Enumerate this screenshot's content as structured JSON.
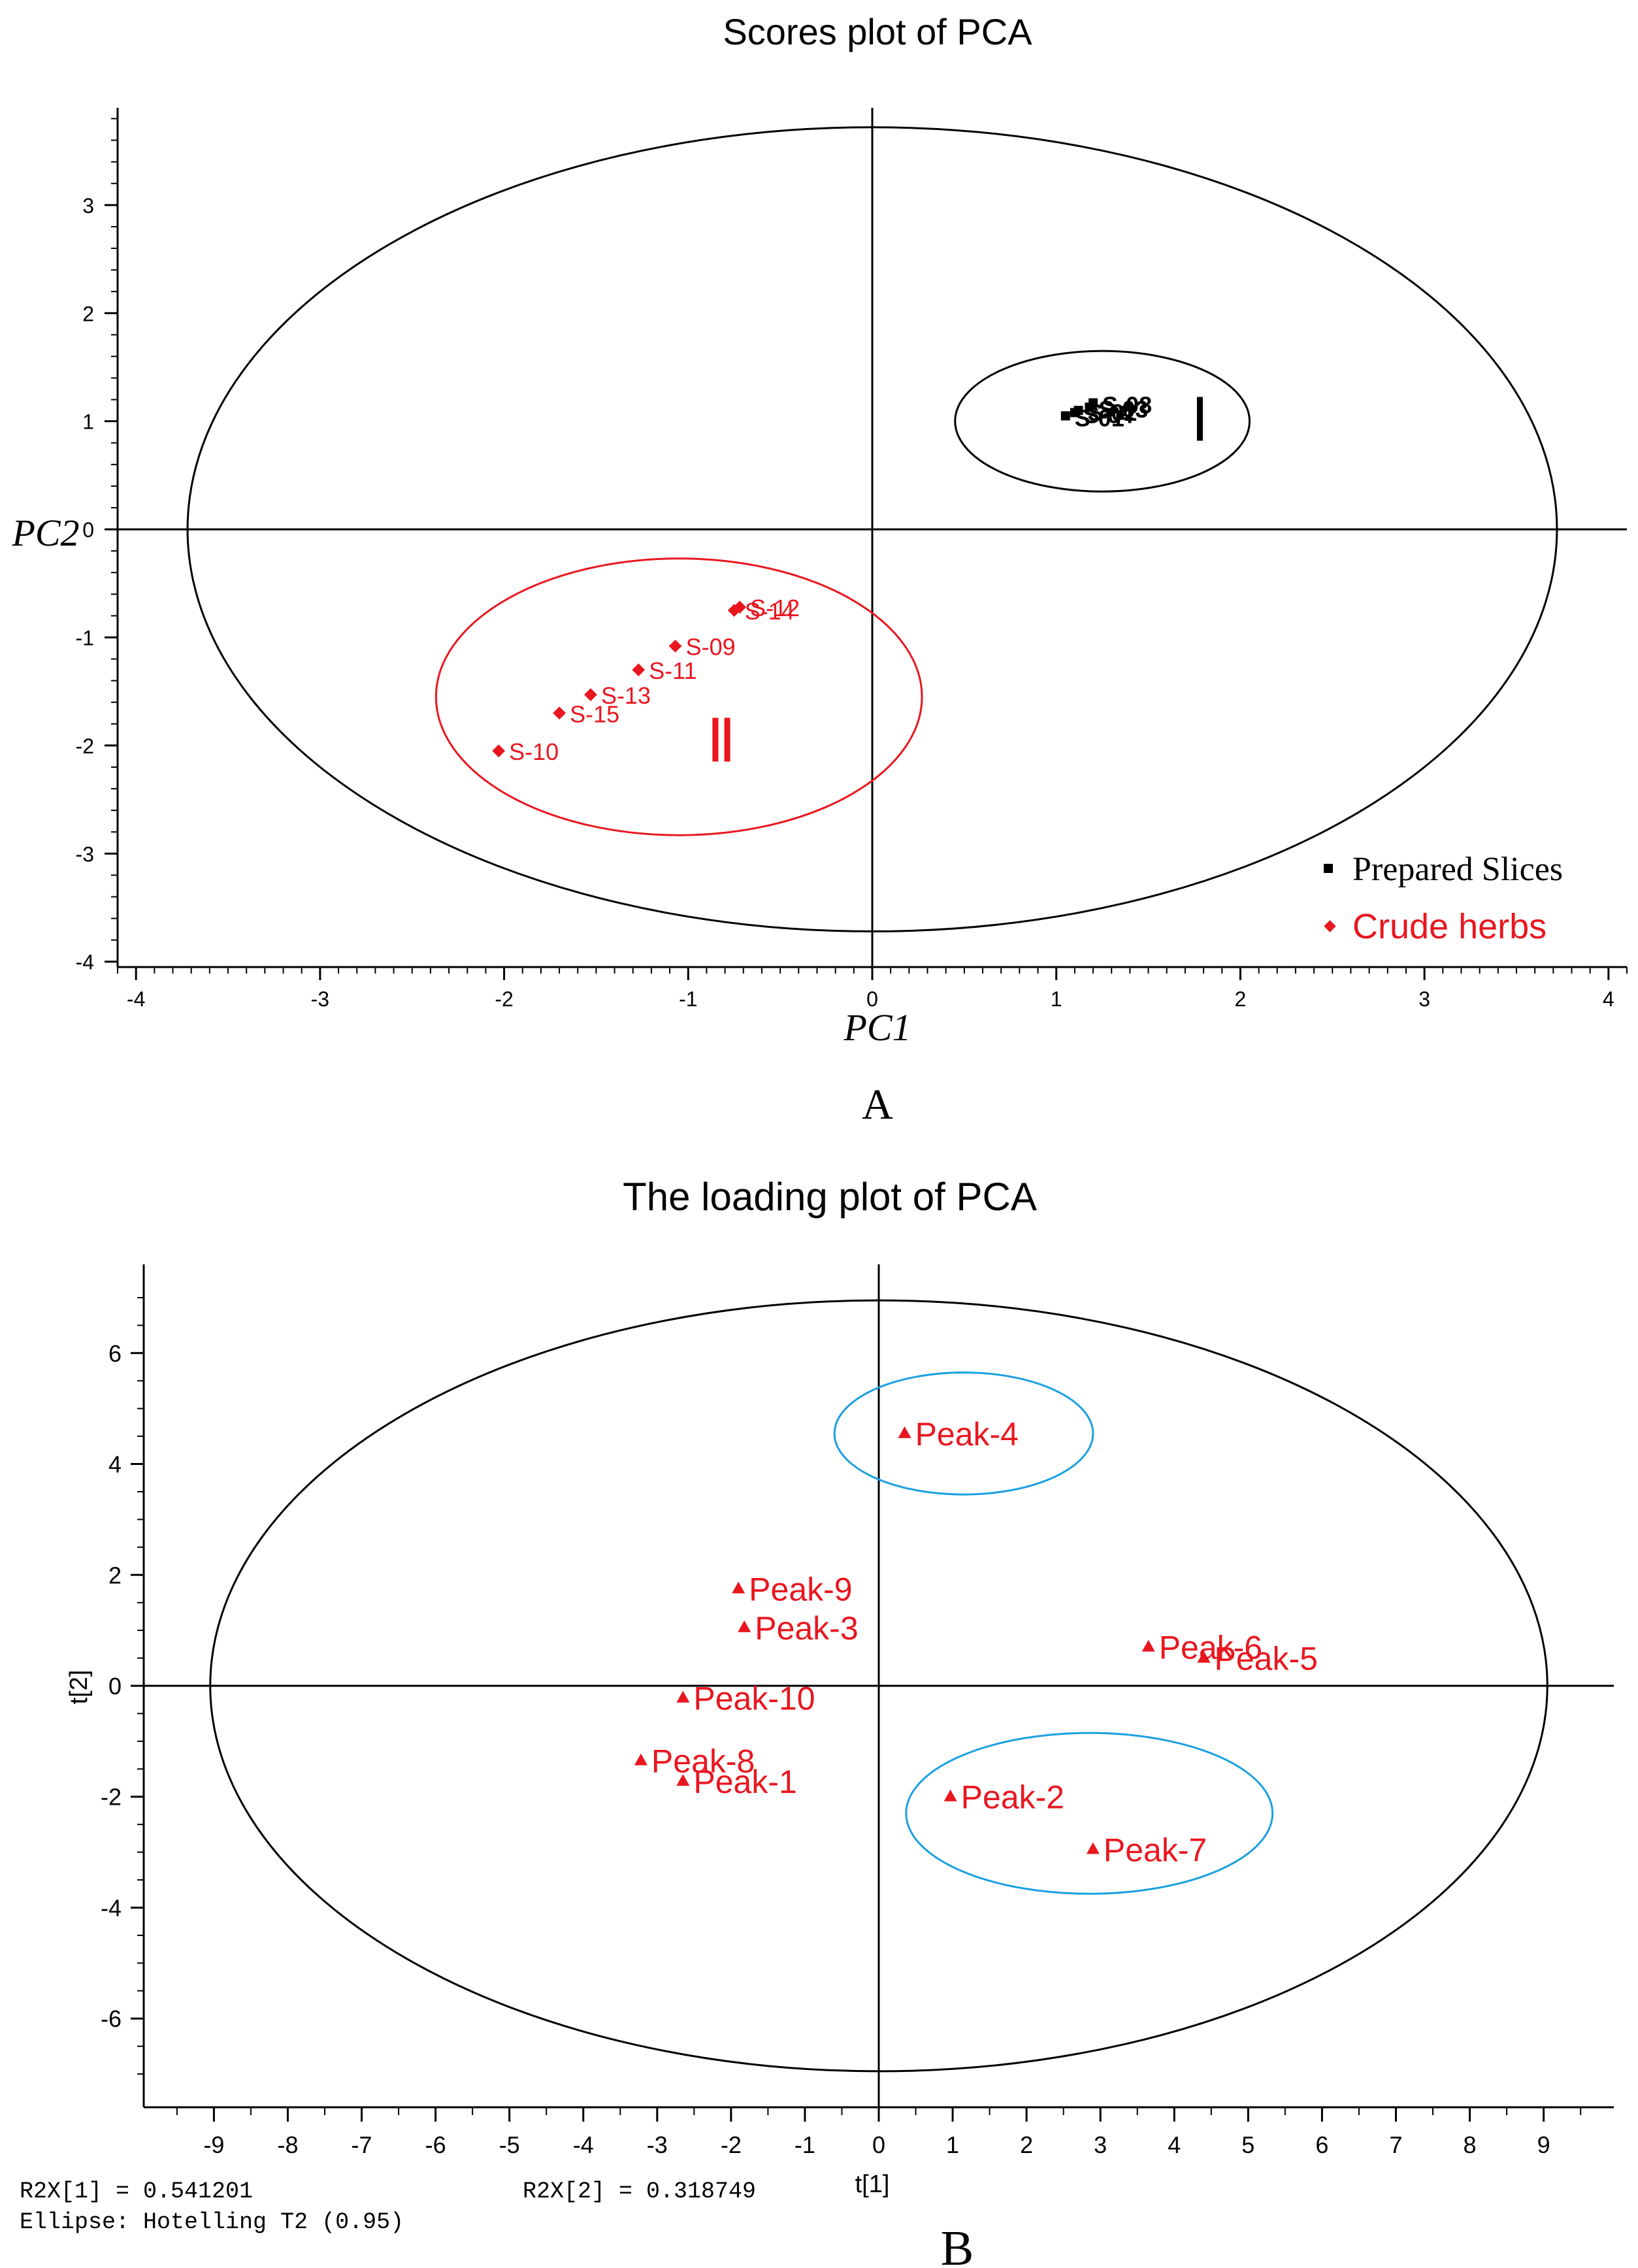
{
  "chart_data": [
    {
      "type": "scatter",
      "panel_label": "A",
      "title": "Scores plot of PCA",
      "xlabel": "PC1",
      "ylabel": "PC2",
      "xlim": [
        -4.1,
        4.1
      ],
      "ylim": [
        -4.05,
        3.9
      ],
      "xticks": [
        -4,
        -3,
        -2,
        -1,
        0,
        1,
        2,
        3,
        4
      ],
      "yticks": [
        -4,
        -3,
        -2,
        -1,
        0,
        1,
        2,
        3
      ],
      "grid": false,
      "legend_position": "bottom-right",
      "colors": {
        "prepared": "#000000",
        "crude": "#e8171f",
        "axis": "#000000"
      },
      "series": [
        {
          "name": "Prepared Slices",
          "marker": "square",
          "points": [
            {
              "label": "S-01",
              "x": 1.05,
              "y": 1.05
            },
            {
              "label": "S-02",
              "x": 1.12,
              "y": 1.1
            },
            {
              "label": "S-03",
              "x": 1.18,
              "y": 1.13
            },
            {
              "label": "S-04",
              "x": 1.1,
              "y": 1.08
            },
            {
              "label": "S-08",
              "x": 1.2,
              "y": 1.17
            }
          ]
        },
        {
          "name": "Crude herbs",
          "marker": "diamond",
          "points": [
            {
              "label": "S-10",
              "x": -2.03,
              "y": -2.05
            },
            {
              "label": "S-15",
              "x": -1.7,
              "y": -1.7
            },
            {
              "label": "S-13",
              "x": -1.53,
              "y": -1.53
            },
            {
              "label": "S-11",
              "x": -1.27,
              "y": -1.3
            },
            {
              "label": "S-09",
              "x": -1.07,
              "y": -1.08
            },
            {
              "label": "S-14",
              "x": -0.75,
              "y": -0.75
            },
            {
              "label": "S-12",
              "x": -0.72,
              "y": -0.72
            }
          ]
        }
      ],
      "ellipses": [
        {
          "name": "hotelling",
          "cx": 0,
          "cy": 0,
          "rx": 3.72,
          "ry": 3.72,
          "color": "#000000"
        },
        {
          "name": "group-I",
          "cx": 1.25,
          "cy": 1.0,
          "rx": 0.8,
          "ry": 0.65,
          "color": "#000000"
        },
        {
          "name": "group-II",
          "cx": -1.05,
          "cy": -1.55,
          "rx": 1.32,
          "ry": 1.28,
          "color": "#e8171f"
        }
      ],
      "group_labels": [
        {
          "text": "Ⅰ",
          "x": 1.78,
          "y": 0.82,
          "color": "#000000"
        },
        {
          "text": "Ⅱ",
          "x": -0.82,
          "y": -2.15,
          "color": "#e8171f"
        }
      ]
    },
    {
      "type": "scatter",
      "panel_label": "B",
      "title": "The loading plot of PCA",
      "xlabel": "t[1]",
      "ylabel": "t[2]",
      "xlim": [
        -9.95,
        9.95
      ],
      "ylim": [
        -7.6,
        7.6
      ],
      "xticks": [
        -9,
        -8,
        -7,
        -6,
        -5,
        -4,
        -3,
        -2,
        -1,
        0,
        1,
        2,
        3,
        4,
        5,
        6,
        7,
        8,
        9
      ],
      "yticks": [
        -6,
        -4,
        -2,
        0,
        2,
        4,
        6
      ],
      "grid": false,
      "colors": {
        "points": "#e8171f",
        "highlight": "#1ba0e0",
        "axis": "#000000"
      },
      "series": [
        {
          "marker": "triangle",
          "points": [
            {
              "label": "Peak-1",
              "x": -2.65,
              "y": -1.72
            },
            {
              "label": "Peak-2",
              "x": 0.97,
              "y": -2.0
            },
            {
              "label": "Peak-3",
              "x": -1.82,
              "y": 1.05
            },
            {
              "label": "Peak-4",
              "x": 0.35,
              "y": 4.55
            },
            {
              "label": "Peak-5",
              "x": 4.4,
              "y": 0.5
            },
            {
              "label": "Peak-6",
              "x": 3.65,
              "y": 0.7
            },
            {
              "label": "Peak-7",
              "x": 2.9,
              "y": -2.95
            },
            {
              "label": "Peak-8",
              "x": -3.22,
              "y": -1.35
            },
            {
              "label": "Peak-9",
              "x": -1.9,
              "y": 1.75
            },
            {
              "label": "Peak-10",
              "x": -2.65,
              "y": -0.22
            }
          ]
        }
      ],
      "ellipses": [
        {
          "name": "hotelling",
          "cx": 0,
          "cy": 0,
          "rx": 9.05,
          "ry": 6.95,
          "color": "#000000"
        },
        {
          "name": "highlight-top",
          "cx": 1.15,
          "cy": 4.55,
          "rx": 1.75,
          "ry": 1.1,
          "color": "#1ba0e0"
        },
        {
          "name": "highlight-bottom",
          "cx": 2.85,
          "cy": -2.3,
          "rx": 2.48,
          "ry": 1.45,
          "color": "#1ba0e0"
        }
      ],
      "footnotes": {
        "r2x1": "R2X[1] = 0.541201",
        "r2x2": "R2X[2] = 0.318749",
        "ellipse": "Ellipse: Hotelling T2 (0.95)"
      }
    }
  ]
}
